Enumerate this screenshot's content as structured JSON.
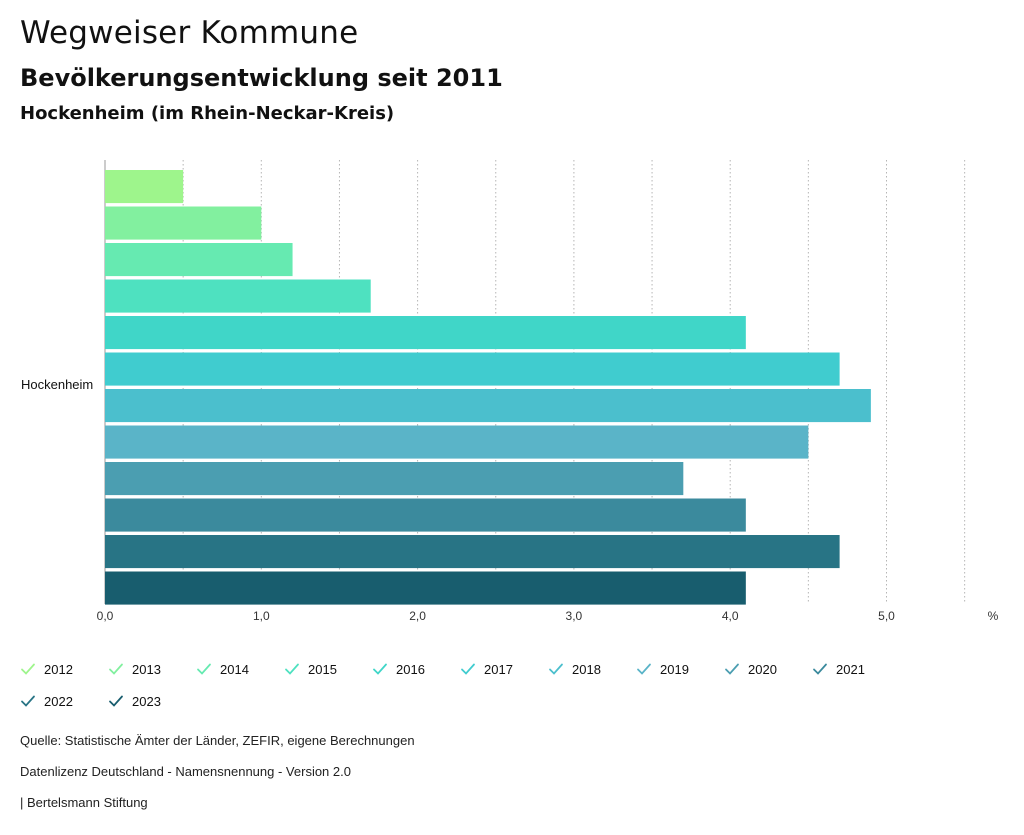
{
  "header": {
    "title": "Wegweiser Kommune",
    "subtitle": "Bevölkerungsentwicklung seit 2011",
    "region": "Hockenheim (im Rhein-Neckar-Kreis)"
  },
  "chart_data": {
    "type": "bar",
    "orientation": "horizontal",
    "title": "Bevölkerungsentwicklung seit 2011",
    "categories": [
      "Hockenheim"
    ],
    "xlabel": "%",
    "ylabel": "",
    "xlim": [
      0,
      5.5
    ],
    "ticks": [
      "0,0",
      "1,0",
      "2,0",
      "3,0",
      "4,0",
      "5,0"
    ],
    "tick_values": [
      0,
      1,
      2,
      3,
      4,
      5
    ],
    "grid": true,
    "legend_position": "bottom",
    "series": [
      {
        "name": "2012",
        "values": [
          0.5
        ],
        "color": "#9ef58c"
      },
      {
        "name": "2013",
        "values": [
          1.0
        ],
        "color": "#82f09f"
      },
      {
        "name": "2014",
        "values": [
          1.2
        ],
        "color": "#66eab1"
      },
      {
        "name": "2015",
        "values": [
          1.7
        ],
        "color": "#4ee1c0"
      },
      {
        "name": "2016",
        "values": [
          4.1
        ],
        "color": "#40d6c8"
      },
      {
        "name": "2017",
        "values": [
          4.7
        ],
        "color": "#40cccf"
      },
      {
        "name": "2018",
        "values": [
          4.9
        ],
        "color": "#4bbfcd"
      },
      {
        "name": "2019",
        "values": [
          4.5
        ],
        "color": "#5ab4c8"
      },
      {
        "name": "2020",
        "values": [
          3.7
        ],
        "color": "#4b9eb1"
      },
      {
        "name": "2021",
        "values": [
          4.1
        ],
        "color": "#3b8a9d"
      },
      {
        "name": "2022",
        "values": [
          4.7
        ],
        "color": "#287485"
      },
      {
        "name": "2023",
        "values": [
          4.1
        ],
        "color": "#185d6e"
      }
    ]
  },
  "footer": {
    "source": "Quelle: Statistische Ämter der Länder, ZEFIR, eigene Berechnungen",
    "license": "Datenlizenz Deutschland - Namensnennung - Version 2.0",
    "brand": "| Bertelsmann Stiftung"
  }
}
